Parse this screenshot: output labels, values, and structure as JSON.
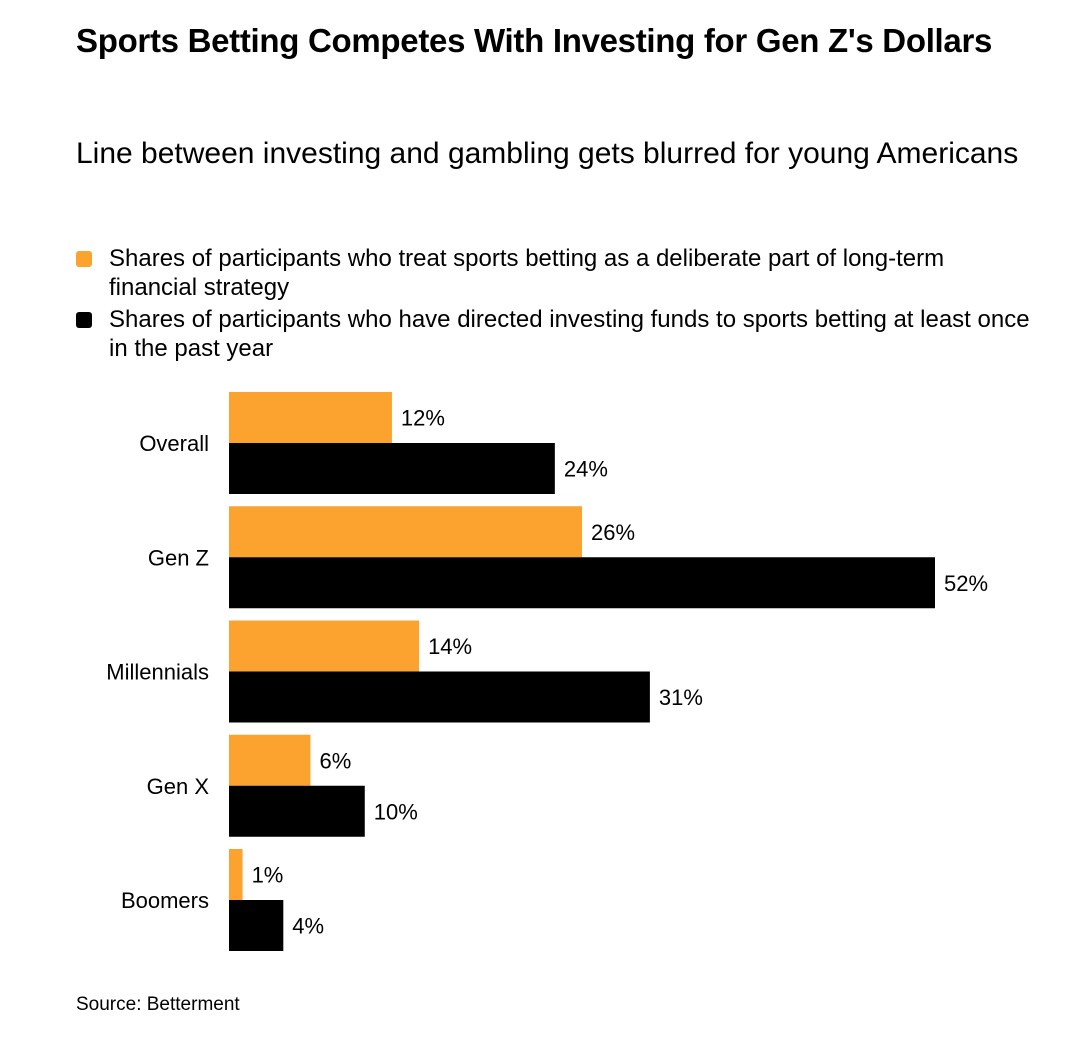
{
  "title": "Sports Betting Competes With Investing for Gen Z's Dollars",
  "subtitle": "Line between investing and gambling gets blurred for young Americans",
  "source": "Source: Betterment",
  "colors": {
    "orange": "#FBA22F",
    "black": "#000000"
  },
  "chart_data": {
    "type": "bar",
    "orientation": "horizontal",
    "categories": [
      "Overall",
      "Gen Z",
      "Millennials",
      "Gen X",
      "Boomers"
    ],
    "series": [
      {
        "name": "Shares of participants who treat sports betting as a deliberate part of long-term financial strategy",
        "color": "#FBA22F",
        "values": [
          12,
          26,
          14,
          6,
          1
        ],
        "labels": [
          "12%",
          "26%",
          "14%",
          "6%",
          "1%"
        ]
      },
      {
        "name": "Shares of participants who have directed investing funds to sports betting at least once in the past year",
        "color": "#000000",
        "values": [
          24,
          52,
          31,
          10,
          4
        ],
        "labels": [
          "24%",
          "52%",
          "31%",
          "10%",
          "4%"
        ]
      }
    ],
    "xlim": [
      0,
      52
    ],
    "grid": false,
    "legend": "top"
  }
}
